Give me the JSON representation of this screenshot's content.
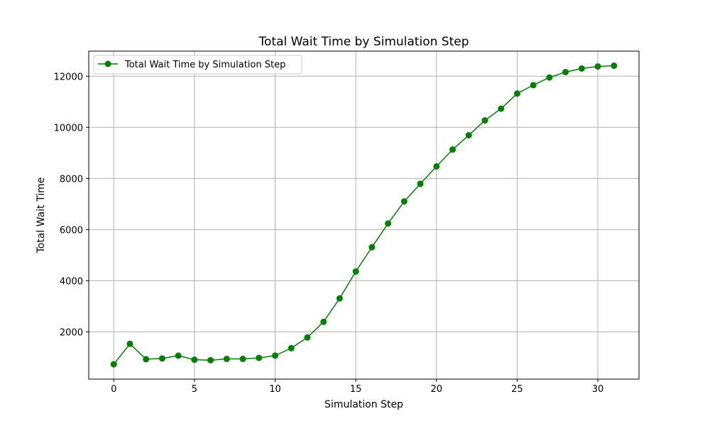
{
  "chart_data": {
    "type": "line",
    "title": "Total Wait Time by Simulation Step",
    "xlabel": "Simulation Step",
    "ylabel": "Total Wait Time",
    "xlim": [
      -1.55,
      32.55
    ],
    "ylim": [
      150,
      12980
    ],
    "xticks": [
      0,
      5,
      10,
      15,
      20,
      25,
      30
    ],
    "yticks": [
      2000,
      4000,
      6000,
      8000,
      10000,
      12000
    ],
    "grid": true,
    "legend_position": "upper-left",
    "series": [
      {
        "name": "Total Wait Time by Simulation Step",
        "color": "#008000",
        "marker": "circle",
        "x": [
          0,
          1,
          2,
          3,
          4,
          5,
          6,
          7,
          8,
          9,
          10,
          11,
          12,
          13,
          14,
          15,
          16,
          17,
          18,
          19,
          20,
          21,
          22,
          23,
          24,
          25,
          26,
          27,
          28,
          29,
          30,
          31
        ],
        "y": [
          730,
          1530,
          930,
          960,
          1070,
          910,
          890,
          940,
          940,
          980,
          1070,
          1360,
          1780,
          2390,
          3310,
          4360,
          5310,
          6240,
          7100,
          7790,
          8470,
          9130,
          9690,
          10270,
          10730,
          11320,
          11650,
          11950,
          12160,
          12300,
          12380,
          12410
        ]
      }
    ]
  }
}
